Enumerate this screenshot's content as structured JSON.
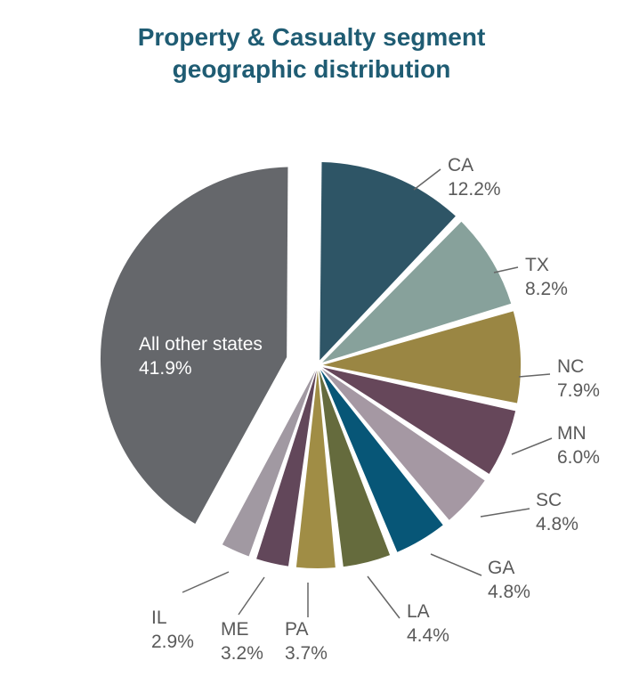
{
  "chart_data": {
    "type": "pie",
    "title": [
      "Property & Casualty segment",
      "geographic distribution"
    ],
    "slices": [
      {
        "label": "CA",
        "value": 12.2,
        "value_label": "12.2%",
        "color": "#2e5566"
      },
      {
        "label": "TX",
        "value": 8.2,
        "value_label": "8.2%",
        "color": "#87a19b"
      },
      {
        "label": "NC",
        "value": 7.9,
        "value_label": "7.9%",
        "color": "#9a8643"
      },
      {
        "label": "MN",
        "value": 6.0,
        "value_label": "6.0%",
        "color": "#66475a"
      },
      {
        "label": "SC",
        "value": 4.8,
        "value_label": "4.8%",
        "color": "#a598a3"
      },
      {
        "label": "GA",
        "value": 4.8,
        "value_label": "4.8%",
        "color": "#075677"
      },
      {
        "label": "LA",
        "value": 4.4,
        "value_label": "4.4%",
        "color": "#656b3d"
      },
      {
        "label": "PA",
        "value": 3.7,
        "value_label": "3.7%",
        "color": "#a08d45"
      },
      {
        "label": "ME",
        "value": 3.2,
        "value_label": "3.2%",
        "color": "#62475a"
      },
      {
        "label": "IL",
        "value": 2.9,
        "value_label": "2.9%",
        "color": "#a199a2"
      },
      {
        "label": "All other states",
        "value": 41.9,
        "value_label": "41.9%",
        "color": "#65676b",
        "label_inside": true
      }
    ],
    "start": "top",
    "direction": "clockwise",
    "exploded": true,
    "legend": "none"
  }
}
